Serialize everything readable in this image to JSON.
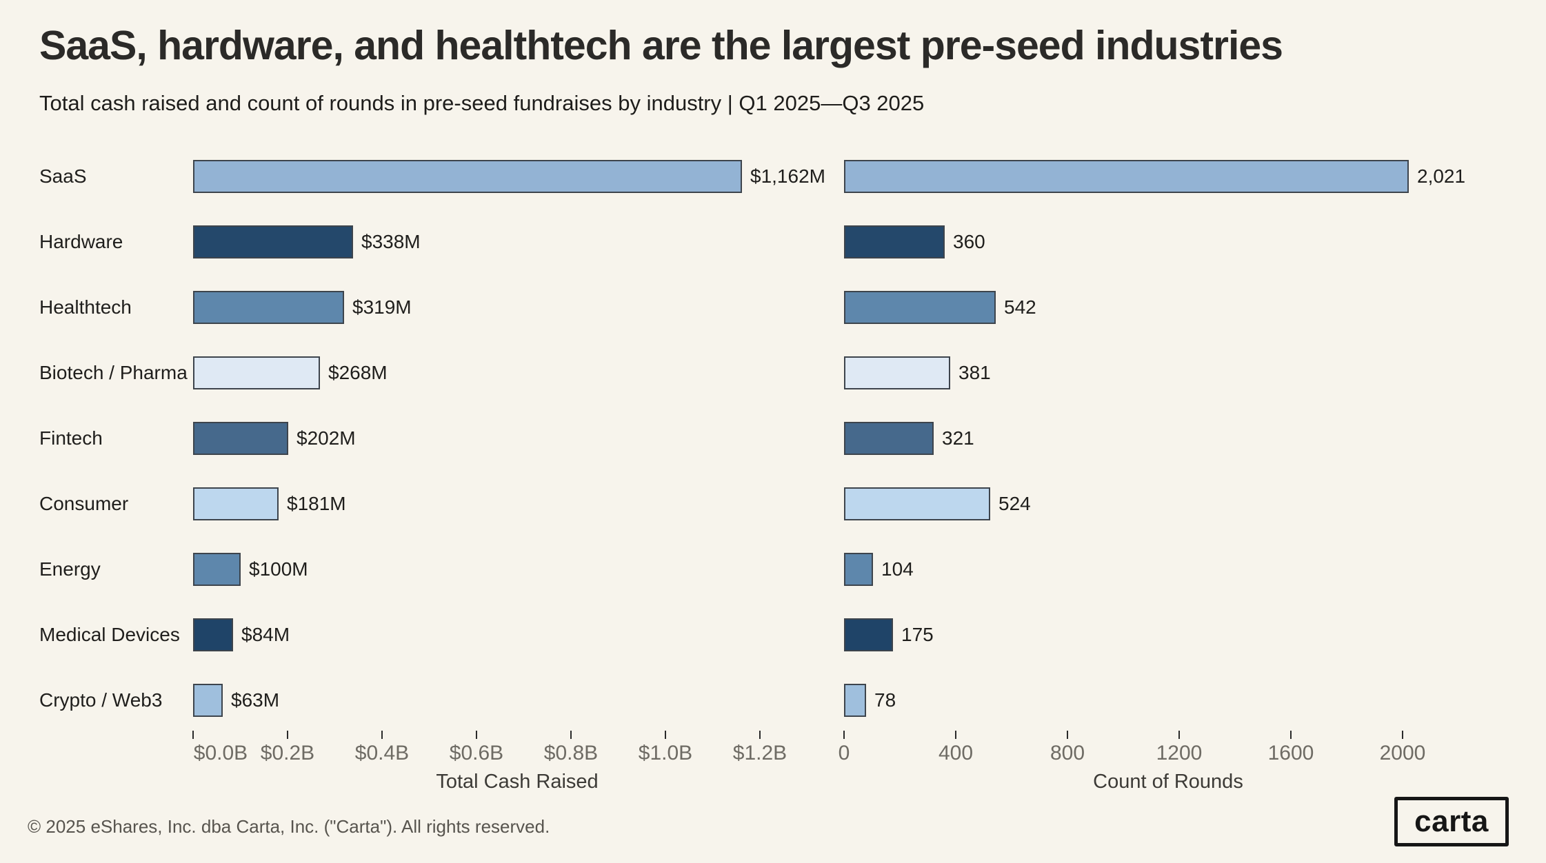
{
  "title": "SaaS, hardware, and healthtech are the largest pre-seed industries",
  "subtitle": "Total cash raised and count of rounds in pre-seed fundraises by industry | Q1 2025—Q3 2025",
  "footer": "© 2025 eShares, Inc. dba Carta, Inc. (\"Carta\"). All rights reserved.",
  "logo_text": "carta",
  "colors": {
    "background": "#F7F4EC",
    "bar_border": "#3d444c",
    "title_text": "#2b2a28",
    "axis_tick_text": "#6e6b64"
  },
  "chart_data": [
    {
      "type": "bar",
      "orientation": "horizontal",
      "name": "total-cash-raised",
      "categories": [
        "SaaS",
        "Hardware",
        "Healthtech",
        "Biotech / Pharma",
        "Fintech",
        "Consumer",
        "Energy",
        "Medical Devices",
        "Crypto / Web3"
      ],
      "values": [
        1162,
        338,
        319,
        268,
        202,
        181,
        100,
        84,
        63
      ],
      "value_labels": [
        "$1,162M",
        "$338M",
        "$319M",
        "$268M",
        "$202M",
        "$181M",
        "$100M",
        "$84M",
        "$63M"
      ],
      "bar_colors": [
        "#93B3D4",
        "#24486B",
        "#5E87AC",
        "#DFE9F4",
        "#46698C",
        "#BDD7EE",
        "#5E87AC",
        "#1F4468",
        "#9FBFDD"
      ],
      "unit": "USD millions",
      "xlabel": "Total Cash Raised",
      "xlim": [
        0,
        1300
      ],
      "tick_values": [
        0,
        200,
        400,
        600,
        800,
        1000,
        1200
      ],
      "tick_labels": [
        "$0.0B",
        "$0.2B",
        "$0.4B",
        "$0.6B",
        "$0.8B",
        "$1.0B",
        "$1.2B"
      ],
      "grid": false,
      "legend": false
    },
    {
      "type": "bar",
      "orientation": "horizontal",
      "name": "count-of-rounds",
      "categories": [
        "SaaS",
        "Hardware",
        "Healthtech",
        "Biotech / Pharma",
        "Fintech",
        "Consumer",
        "Energy",
        "Medical Devices",
        "Crypto / Web3"
      ],
      "values": [
        2021,
        360,
        542,
        381,
        321,
        524,
        104,
        175,
        78
      ],
      "value_labels": [
        "2,021",
        "360",
        "542",
        "381",
        "321",
        "524",
        "104",
        "175",
        "78"
      ],
      "bar_colors": [
        "#93B3D4",
        "#24486B",
        "#5E87AC",
        "#DFE9F4",
        "#46698C",
        "#BDD7EE",
        "#5E87AC",
        "#1F4468",
        "#9FBFDD"
      ],
      "unit": "rounds",
      "xlabel": "Count of Rounds",
      "xlim": [
        0,
        2500
      ],
      "tick_values": [
        0,
        400,
        800,
        1200,
        1600,
        2000
      ],
      "tick_labels": [
        "0",
        "400",
        "800",
        "1200",
        "1600",
        "2000"
      ],
      "grid": false,
      "legend": false
    }
  ]
}
